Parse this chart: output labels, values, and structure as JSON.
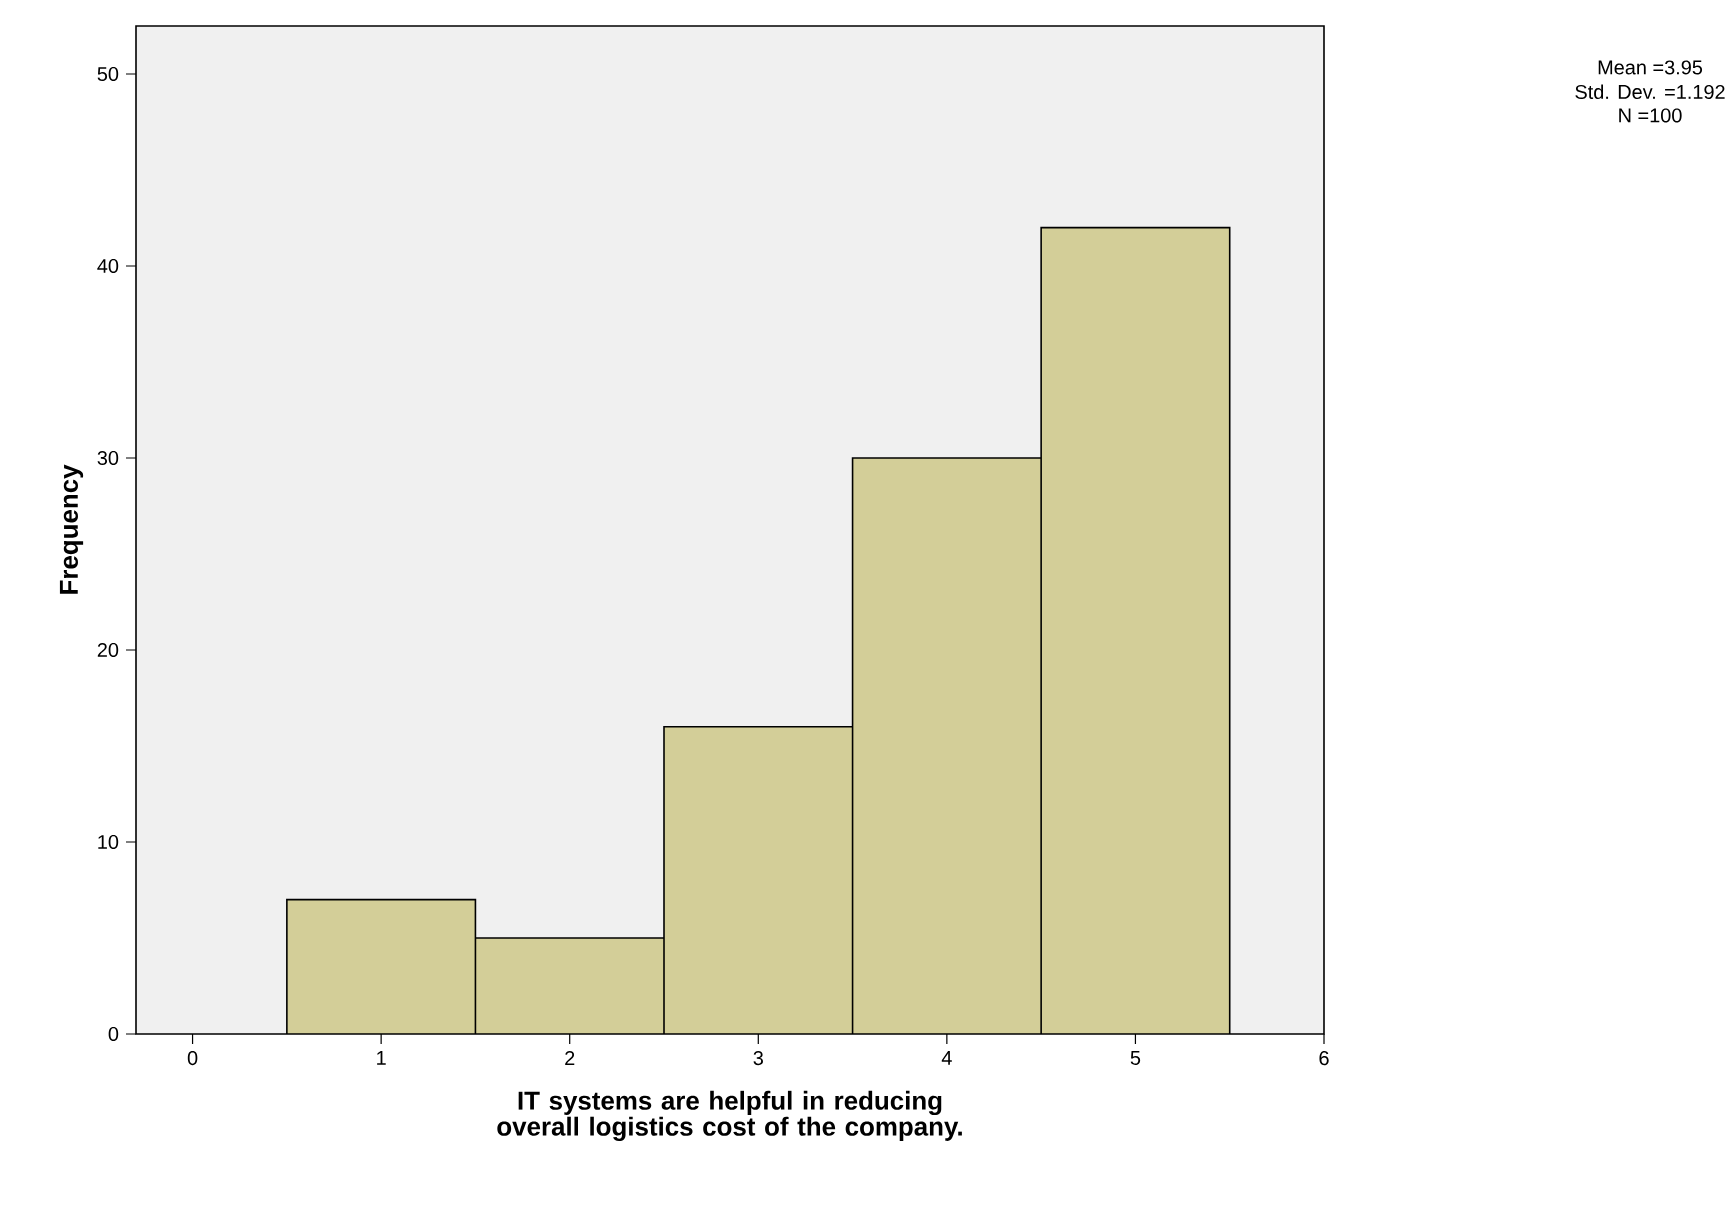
{
  "chart_data": {
    "type": "histogram",
    "xlabel": "IT systems are helpful in reducing overall logistics cost of the company.",
    "ylabel": "Frequency",
    "bins": [
      0.5,
      1.5,
      2.5,
      3.5,
      4.5,
      5.5
    ],
    "values": [
      7,
      5,
      16,
      30,
      42
    ],
    "color": "#d3ce98",
    "xlim": [
      -0.3,
      6
    ],
    "ylim": [
      0,
      52.5
    ],
    "xticks": [
      0,
      1,
      2,
      3,
      4,
      5,
      6
    ],
    "yticks": [
      0,
      10,
      20,
      30,
      40,
      50
    ],
    "annotations": [
      "Mean =3.95",
      "Std. Dev. =1.192",
      "N =100"
    ]
  }
}
